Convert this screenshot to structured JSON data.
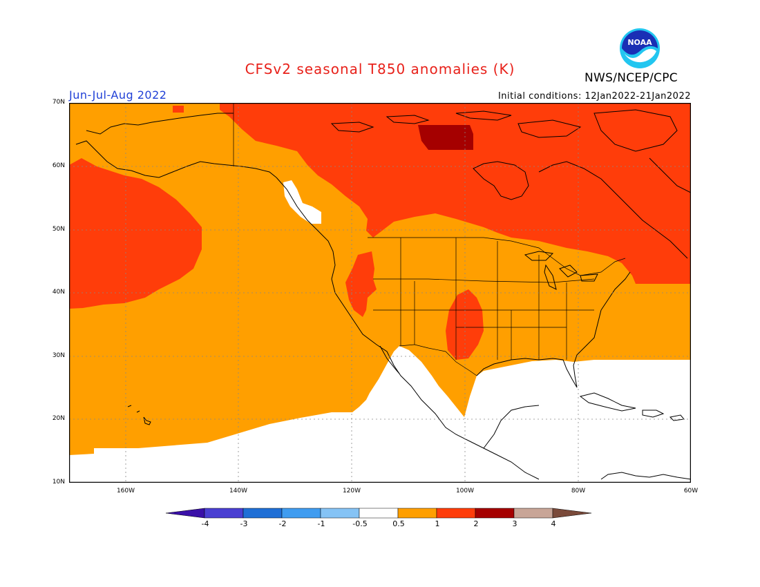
{
  "title": "CFSv2 seasonal T850 anomalies (K)",
  "period": "Jun-Jul-Aug 2022",
  "initial_conditions": "Initial conditions: 12Jan2022-21Jan2022",
  "organization": "NWS/NCEP/CPC",
  "logo_text": "NOAA",
  "map": {
    "lat_labels": [
      "70N",
      "60N",
      "50N",
      "40N",
      "30N",
      "20N",
      "10N"
    ],
    "lon_labels": [
      "160W",
      "140W",
      "120W",
      "100W",
      "80W",
      "60W"
    ]
  },
  "colorbar": {
    "labels": [
      "-4",
      "-3",
      "-2",
      "-1",
      "-0.5",
      "0.5",
      "1",
      "2",
      "3",
      "4"
    ],
    "colors": [
      "#3a10a8",
      "#4a3fd2",
      "#1f6fd6",
      "#3f9cf0",
      "#85c3f5",
      "#ffffff",
      "#ff9f00",
      "#ff3d0a",
      "#a50000",
      "#c8a597",
      "#7a4a3a"
    ]
  },
  "legend_colors": {
    "anom_0_5_to_1": "#ff9f00",
    "anom_1_to_2": "#ff3d0a",
    "anom_2_to_3": "#a50000"
  }
}
